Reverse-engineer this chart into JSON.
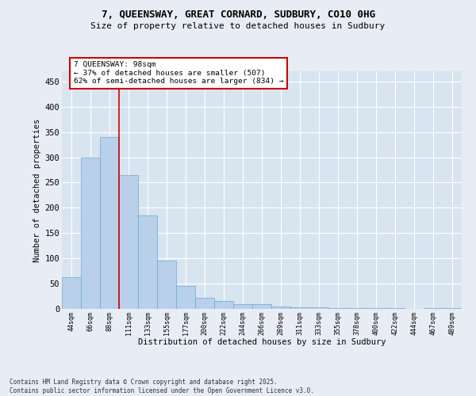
{
  "title": "7, QUEENSWAY, GREAT CORNARD, SUDBURY, CO10 0HG",
  "subtitle": "Size of property relative to detached houses in Sudbury",
  "xlabel": "Distribution of detached houses by size in Sudbury",
  "ylabel": "Number of detached properties",
  "categories": [
    "44sqm",
    "66sqm",
    "88sqm",
    "111sqm",
    "133sqm",
    "155sqm",
    "177sqm",
    "200sqm",
    "222sqm",
    "244sqm",
    "266sqm",
    "289sqm",
    "311sqm",
    "333sqm",
    "355sqm",
    "378sqm",
    "400sqm",
    "422sqm",
    "444sqm",
    "467sqm",
    "489sqm"
  ],
  "values": [
    62,
    300,
    340,
    265,
    185,
    95,
    45,
    22,
    15,
    10,
    10,
    4,
    3,
    3,
    2,
    2,
    1,
    1,
    0,
    1,
    1
  ],
  "bar_color": "#b8d0ea",
  "bar_edge_color": "#6fa8d0",
  "property_line_x": 2.5,
  "annotation_text": "7 QUEENSWAY: 98sqm\n← 37% of detached houses are smaller (507)\n62% of semi-detached houses are larger (834) →",
  "annotation_box_color": "#ffffff",
  "annotation_box_edge": "#cc0000",
  "property_line_color": "#cc0000",
  "footer_text": "Contains HM Land Registry data © Crown copyright and database right 2025.\nContains public sector information licensed under the Open Government Licence v3.0.",
  "bg_color": "#e8edf5",
  "plot_bg_color": "#d8e4f0",
  "grid_color": "#ffffff",
  "ylim": [
    0,
    470
  ],
  "yticks": [
    0,
    50,
    100,
    150,
    200,
    250,
    300,
    350,
    400,
    450
  ]
}
